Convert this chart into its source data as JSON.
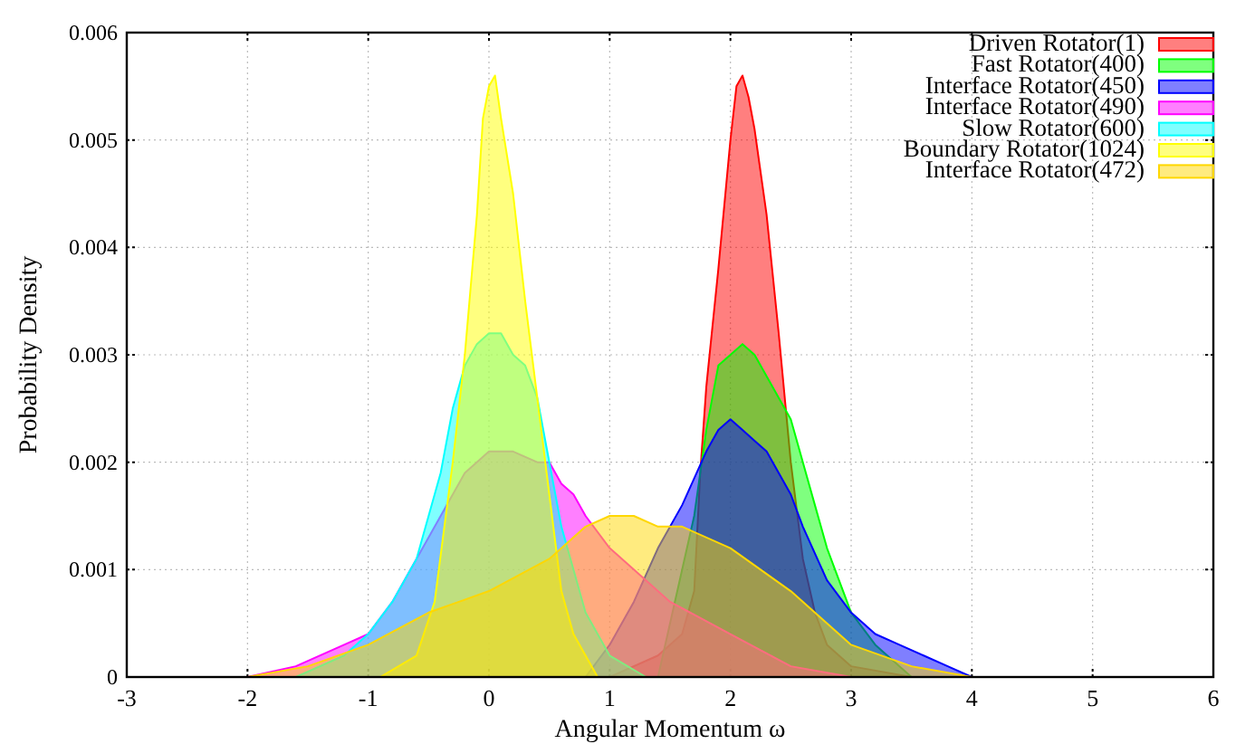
{
  "chart_data": {
    "type": "area",
    "xlabel": "Angular Momentum ω",
    "ylabel": "Probability Density",
    "xlim": [
      -3,
      6
    ],
    "xticks": [
      -3,
      -2,
      -1,
      0,
      1,
      2,
      3,
      4,
      5,
      6
    ],
    "ylim": [
      0,
      0.006
    ],
    "yticks": [
      0,
      0.001,
      0.002,
      0.003,
      0.004,
      0.005,
      0.006
    ],
    "grid": true,
    "legend": "top right",
    "series": [
      {
        "name": "Driven Rotator(1)",
        "color": "#ff0000",
        "x": [
          1.0,
          1.4,
          1.6,
          1.7,
          1.75,
          1.8,
          1.9,
          2.0,
          2.05,
          2.1,
          2.15,
          2.2,
          2.3,
          2.4,
          2.5,
          2.6,
          2.7,
          2.8,
          3.0,
          3.5
        ],
        "values": [
          0,
          0.0002,
          0.0004,
          0.0008,
          0.0019,
          0.0027,
          0.0038,
          0.005,
          0.0055,
          0.0056,
          0.0054,
          0.0051,
          0.0043,
          0.0032,
          0.002,
          0.0011,
          0.0006,
          0.0003,
          0.0001,
          0
        ]
      },
      {
        "name": "Fast Rotator(400)",
        "color": "#00ff00",
        "x": [
          1.4,
          1.7,
          1.8,
          1.9,
          2.0,
          2.1,
          2.2,
          2.3,
          2.4,
          2.5,
          2.6,
          2.7,
          2.8,
          3.0,
          3.2,
          3.5
        ],
        "values": [
          0,
          0.0015,
          0.0023,
          0.0029,
          0.003,
          0.0031,
          0.003,
          0.0028,
          0.0026,
          0.0024,
          0.002,
          0.0016,
          0.0012,
          0.0006,
          0.0003,
          0
        ]
      },
      {
        "name": "Interface Rotator(450)",
        "color": "#0000ff",
        "x": [
          0.8,
          1.0,
          1.2,
          1.4,
          1.6,
          1.8,
          1.9,
          2.0,
          2.1,
          2.2,
          2.3,
          2.4,
          2.5,
          2.6,
          2.8,
          3.0,
          3.2,
          3.4,
          3.6,
          3.8,
          4.0
        ],
        "values": [
          0,
          0.0003,
          0.0007,
          0.0012,
          0.0016,
          0.0021,
          0.0023,
          0.0024,
          0.0023,
          0.0022,
          0.0021,
          0.0019,
          0.0017,
          0.0014,
          0.0009,
          0.0006,
          0.0004,
          0.0003,
          0.0002,
          0.0001,
          0
        ]
      },
      {
        "name": "Interface Rotator(490)",
        "color": "#ff00ff",
        "x": [
          -2.0,
          -1.6,
          -1.2,
          -1.0,
          -0.8,
          -0.6,
          -0.4,
          -0.2,
          0,
          0.2,
          0.4,
          0.5,
          0.6,
          0.7,
          0.8,
          1.0,
          1.2,
          1.5,
          2.0,
          2.5,
          3.0
        ],
        "values": [
          0,
          0.0001,
          0.0003,
          0.0004,
          0.0007,
          0.0011,
          0.0015,
          0.0019,
          0.0021,
          0.0021,
          0.002,
          0.002,
          0.0018,
          0.0017,
          0.0015,
          0.0012,
          0.001,
          0.0007,
          0.0004,
          0.0001,
          0
        ]
      },
      {
        "name": "Slow Rotator(600)",
        "color": "#00ffff",
        "x": [
          -1.6,
          -1.2,
          -1.0,
          -0.8,
          -0.6,
          -0.5,
          -0.4,
          -0.3,
          -0.2,
          -0.1,
          0,
          0.1,
          0.2,
          0.3,
          0.4,
          0.5,
          0.6,
          0.8,
          1.0,
          1.3
        ],
        "values": [
          0,
          0.0002,
          0.0004,
          0.0007,
          0.0011,
          0.0015,
          0.0019,
          0.0025,
          0.0029,
          0.0031,
          0.0032,
          0.0032,
          0.003,
          0.0029,
          0.0026,
          0.002,
          0.0014,
          0.0006,
          0.0002,
          0
        ]
      },
      {
        "name": "Boundary Rotator(1024)",
        "color": "#ffff00",
        "x": [
          -0.9,
          -0.6,
          -0.45,
          -0.3,
          -0.2,
          -0.1,
          -0.05,
          0,
          0.05,
          0.1,
          0.2,
          0.3,
          0.4,
          0.5,
          0.6,
          0.7,
          0.8,
          0.9
        ],
        "values": [
          0,
          0.0002,
          0.0007,
          0.002,
          0.003,
          0.0043,
          0.0052,
          0.0055,
          0.0056,
          0.0052,
          0.0045,
          0.0035,
          0.0026,
          0.0017,
          0.0008,
          0.0004,
          0.0002,
          0
        ]
      },
      {
        "name": "Interface Rotator(472)",
        "color": "#ffd700",
        "x": [
          -2.0,
          -1.5,
          -1.0,
          -0.5,
          0,
          0.5,
          0.8,
          1.0,
          1.2,
          1.4,
          1.6,
          2.0,
          2.5,
          3.0,
          3.5,
          4.0
        ],
        "values": [
          0,
          0.0001,
          0.0003,
          0.0006,
          0.0008,
          0.0011,
          0.0014,
          0.0015,
          0.0015,
          0.0014,
          0.0014,
          0.0012,
          0.0008,
          0.0003,
          0.0001,
          0
        ]
      }
    ]
  }
}
